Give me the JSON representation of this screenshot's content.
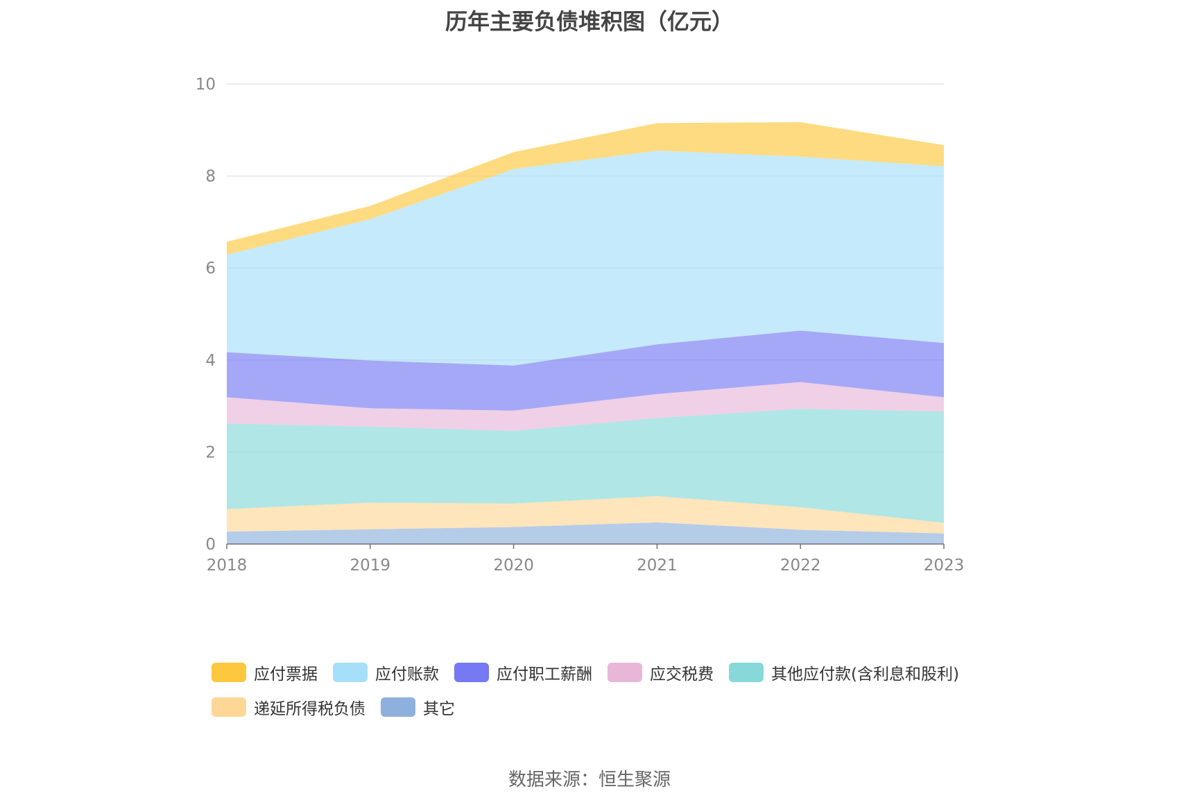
{
  "page": {
    "title": "历年主要负债堆积图（亿元）",
    "source": "数据来源：恒生聚源"
  },
  "chart_data": {
    "type": "area",
    "stacked": true,
    "title": "历年主要负债堆积图（亿元）",
    "xlabel": "",
    "ylabel": "",
    "ylim": [
      0,
      10
    ],
    "yticks": [
      0,
      2,
      4,
      6,
      8,
      10
    ],
    "grid": true,
    "legend_position": "bottom",
    "x": [
      "2018",
      "2019",
      "2020",
      "2021",
      "2022",
      "2023"
    ],
    "series": [
      {
        "name": "其它",
        "color": "#8eb0dc",
        "values": [
          0.27,
          0.32,
          0.37,
          0.47,
          0.31,
          0.23
        ]
      },
      {
        "name": "递延所得税负债",
        "color": "#fed796",
        "values": [
          0.49,
          0.58,
          0.51,
          0.57,
          0.49,
          0.23
        ]
      },
      {
        "name": "其他应付款(含利息和股利)",
        "color": "#86d8d9",
        "values": [
          1.86,
          1.65,
          1.58,
          1.7,
          2.14,
          2.42
        ]
      },
      {
        "name": "应交税费",
        "color": "#e8b7d8",
        "values": [
          0.57,
          0.4,
          0.44,
          0.52,
          0.58,
          0.31
        ]
      },
      {
        "name": "应付职工薪酬",
        "color": "#7579f3",
        "values": [
          0.98,
          1.04,
          0.98,
          1.08,
          1.12,
          1.18
        ]
      },
      {
        "name": "应付账款",
        "color": "#a6dff9",
        "values": [
          2.12,
          3.07,
          4.27,
          4.21,
          3.78,
          3.84
        ]
      },
      {
        "name": "应付票据",
        "color": "#fdc73e",
        "values": [
          0.28,
          0.29,
          0.37,
          0.6,
          0.75,
          0.46
        ]
      }
    ]
  },
  "legend": [
    {
      "name": "应付票据",
      "color": "#fdc73e"
    },
    {
      "name": "应付账款",
      "color": "#a6dff9"
    },
    {
      "name": "应付职工薪酬",
      "color": "#7579f3"
    },
    {
      "name": "应交税费",
      "color": "#e8b7d8"
    },
    {
      "name": "其他应付款(含利息和股利)",
      "color": "#86d8d9"
    },
    {
      "name": "递延所得税负债",
      "color": "#fed796"
    },
    {
      "name": "其它",
      "color": "#8eb0dc"
    }
  ]
}
